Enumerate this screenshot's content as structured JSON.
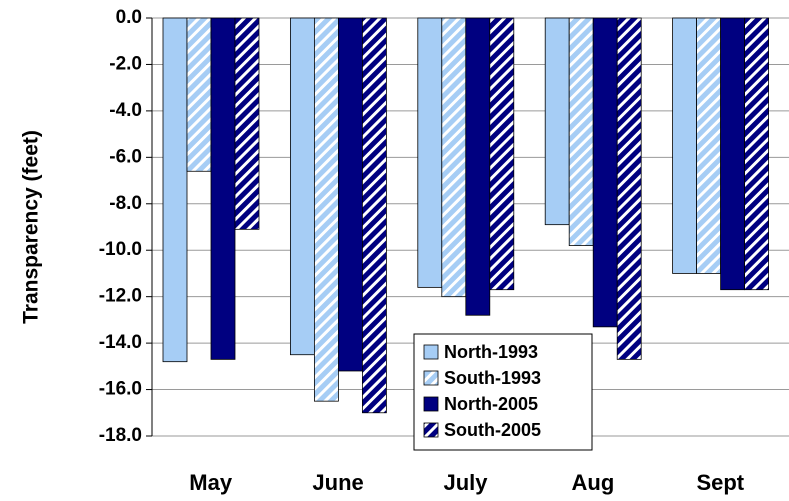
{
  "chart_data": {
    "type": "bar",
    "y_label": "Transparency (feet)",
    "categories": [
      "May",
      "June",
      "July",
      "Aug",
      "Sept"
    ],
    "series": [
      {
        "name": "North-1993",
        "color": "#a6cdf5",
        "hatch": false,
        "values": [
          -14.8,
          -14.5,
          -11.6,
          -8.9,
          -11.0
        ]
      },
      {
        "name": "South-1993",
        "color": "#a6cdf5",
        "hatch": true,
        "values": [
          -6.6,
          -16.5,
          -12.0,
          -9.8,
          -11.0
        ]
      },
      {
        "name": "North-2005",
        "color": "#000080",
        "hatch": false,
        "values": [
          -14.7,
          -15.2,
          -12.8,
          -13.3,
          -11.7
        ]
      },
      {
        "name": "South-2005",
        "color": "#000080",
        "hatch": true,
        "values": [
          -9.1,
          -17.0,
          -11.7,
          -14.7,
          -11.7
        ]
      }
    ],
    "ylim": [
      -18,
      0
    ],
    "yticks": [
      {
        "value": 0,
        "label": "0.0"
      },
      {
        "value": -2,
        "label": "-2.0"
      },
      {
        "value": -4,
        "label": "-4.0"
      },
      {
        "value": -6,
        "label": "-6.0"
      },
      {
        "value": -8,
        "label": "-8.0"
      },
      {
        "value": -10,
        "label": "-10.0"
      },
      {
        "value": -12,
        "label": "-12.0"
      },
      {
        "value": -14,
        "label": "-14.0"
      },
      {
        "value": -16,
        "label": "-16.0"
      },
      {
        "value": -18,
        "label": "-18.0"
      }
    ],
    "grid": true,
    "legend_position": "lower center"
  }
}
